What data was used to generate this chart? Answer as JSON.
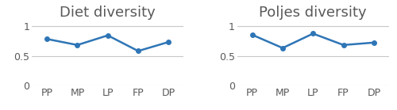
{
  "categories": [
    "PP",
    "MP",
    "LP",
    "FP",
    "DP"
  ],
  "diet_values": [
    0.78,
    0.68,
    0.84,
    0.58,
    0.73
  ],
  "poljes_values": [
    0.85,
    0.63,
    0.87,
    0.68,
    0.72
  ],
  "title_left": "Diet diversity",
  "title_right": "Poljes diversity",
  "line_color": "#2E75B6",
  "marker": "o",
  "marker_size": 4,
  "ylim": [
    0,
    1.1
  ],
  "yticks": [
    0,
    0.5,
    1
  ],
  "background_color": "#ffffff",
  "grid_color": "#c8c8c8",
  "title_fontsize": 13,
  "tick_fontsize": 9,
  "title_color": "#595959"
}
